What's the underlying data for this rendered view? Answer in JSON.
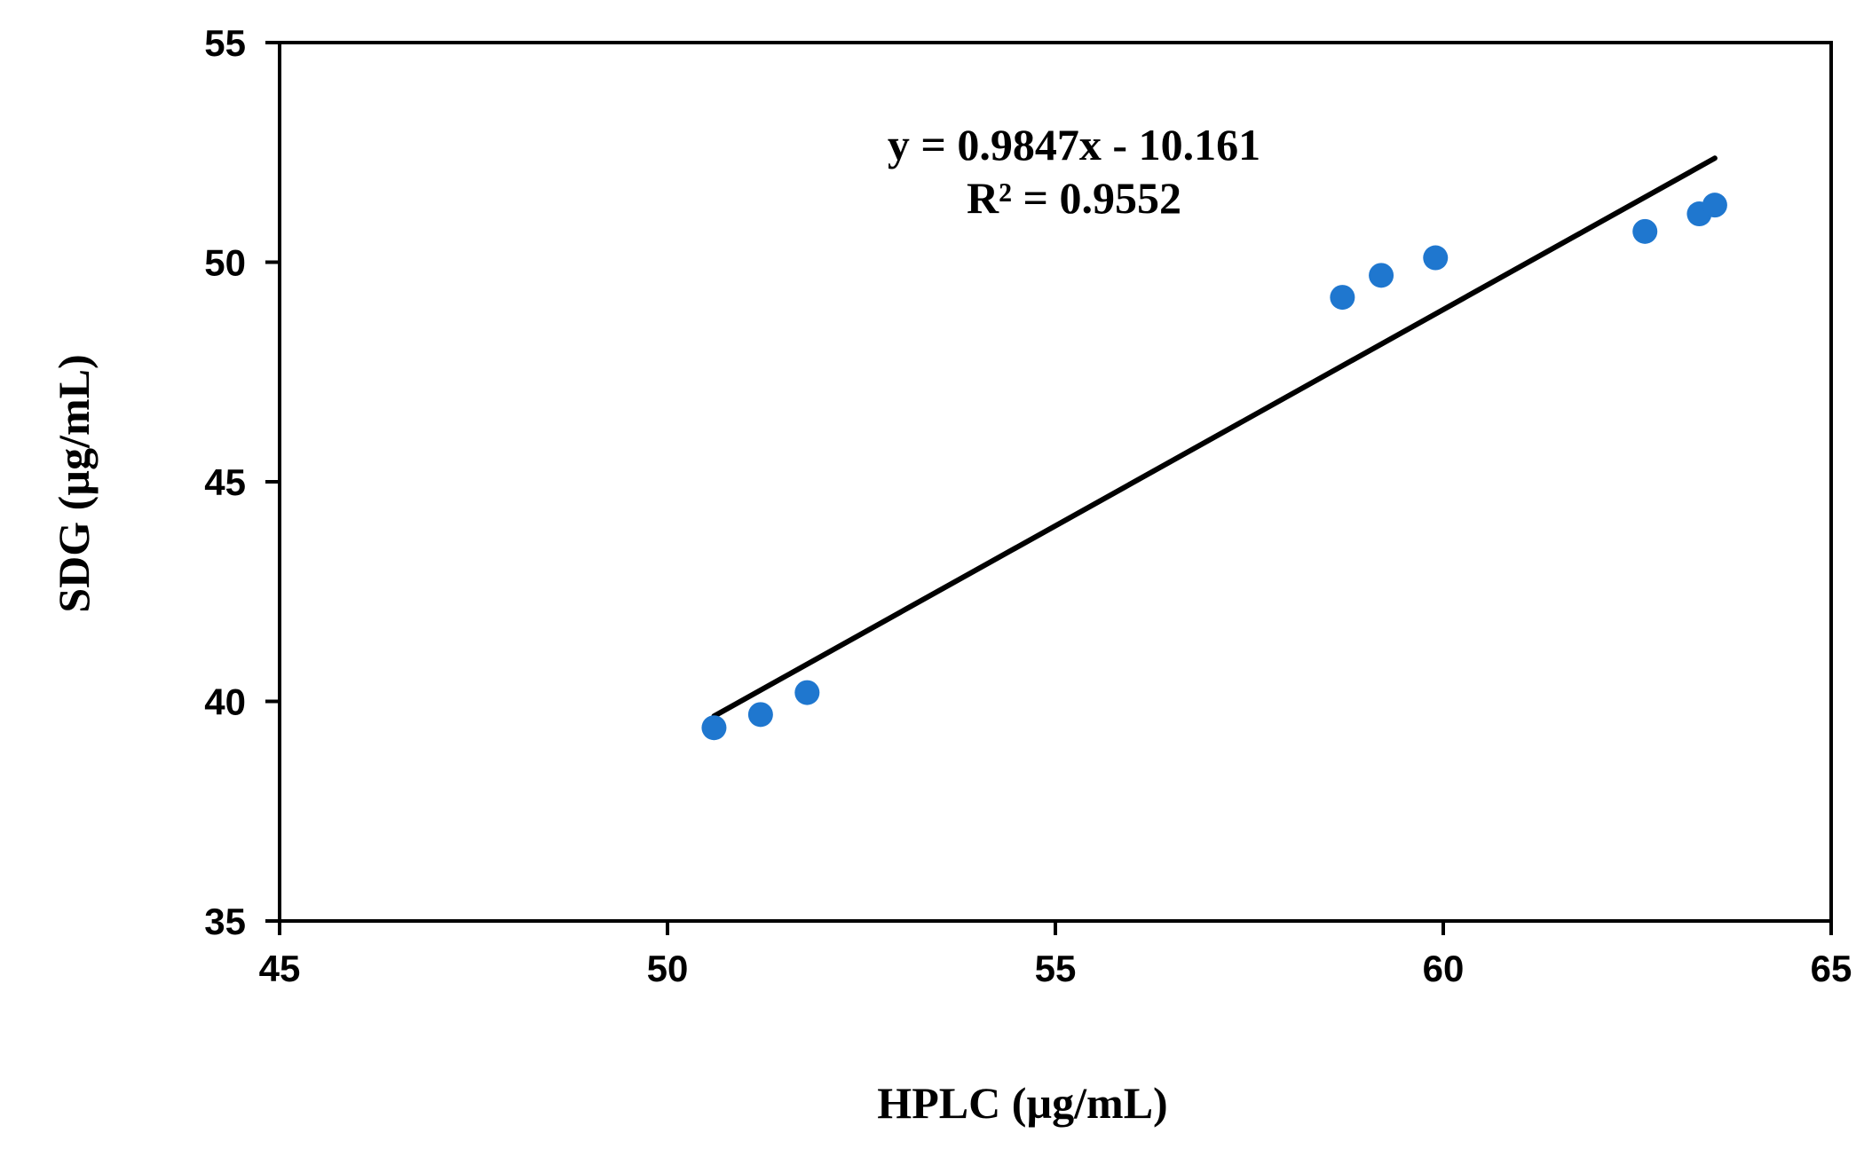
{
  "chart_data": {
    "type": "scatter",
    "title": "",
    "xlabel": "HPLC (µg/mL)",
    "ylabel": "SDG (µg/mL)",
    "xlim": [
      45,
      65
    ],
    "ylim": [
      35,
      55
    ],
    "xticks": [
      45,
      50,
      55,
      60,
      65
    ],
    "yticks": [
      35,
      40,
      45,
      50,
      55
    ],
    "grid": false,
    "legend": "none",
    "series": [
      {
        "points": [
          {
            "x": 50.6,
            "y": 39.4
          },
          {
            "x": 51.2,
            "y": 39.7
          },
          {
            "x": 51.8,
            "y": 40.2
          },
          {
            "x": 58.7,
            "y": 49.2
          },
          {
            "x": 59.2,
            "y": 49.7
          },
          {
            "x": 59.9,
            "y": 50.1
          },
          {
            "x": 62.6,
            "y": 50.7
          },
          {
            "x": 63.3,
            "y": 51.1
          },
          {
            "x": 63.5,
            "y": 51.3
          }
        ],
        "color": "#1f77cf"
      }
    ],
    "trendline": {
      "slope": 0.9847,
      "intercept": -10.161,
      "x_range": [
        50.6,
        63.5
      ],
      "color": "#000000"
    },
    "annotations": {
      "equation": "y = 0.9847x - 10.161",
      "r_squared": "R² = 0.9552"
    }
  }
}
